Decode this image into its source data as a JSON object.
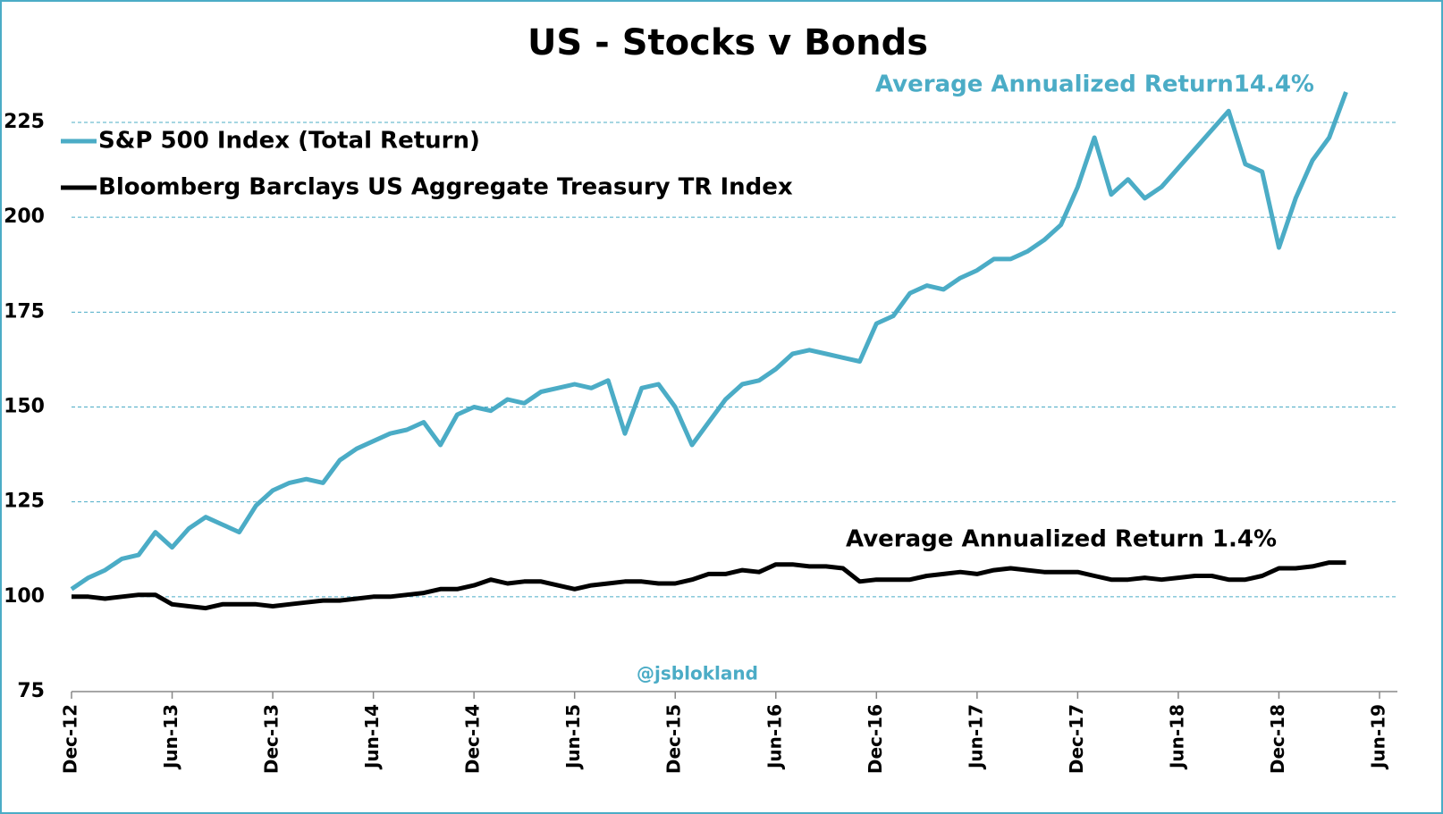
{
  "chart_data": {
    "type": "line",
    "title": "US - Stocks v Bonds",
    "categories": [
      "Dec-12",
      null,
      null,
      null,
      null,
      null,
      "Jun-13",
      null,
      null,
      null,
      null,
      null,
      "Dec-13",
      null,
      null,
      null,
      null,
      null,
      "Jun-14",
      null,
      null,
      null,
      null,
      null,
      "Dec-14",
      null,
      null,
      null,
      null,
      null,
      "Jun-15",
      null,
      null,
      null,
      null,
      null,
      "Dec-15",
      null,
      null,
      null,
      null,
      null,
      "Jun-16",
      null,
      null,
      null,
      null,
      null,
      "Dec-16",
      null,
      null,
      null,
      null,
      null,
      "Jun-17",
      null,
      null,
      null,
      null,
      null,
      "Dec-17",
      null,
      null,
      null,
      null,
      null,
      "Jun-18",
      null,
      null,
      null,
      null,
      null,
      "Dec-18",
      null,
      null,
      null,
      null,
      null,
      "Jun-19"
    ],
    "series": [
      {
        "name": "S&P 500 Index (Total Return)",
        "color": "#4bacc6",
        "values": [
          102,
          105,
          107,
          110,
          111,
          117,
          113,
          118,
          121,
          119,
          117,
          124,
          128,
          130,
          131,
          130,
          136,
          139,
          141,
          143,
          144,
          146,
          140,
          148,
          150,
          149,
          152,
          151,
          154,
          155,
          156,
          155,
          157,
          143,
          155,
          156,
          150,
          140,
          146,
          152,
          156,
          157,
          160,
          164,
          165,
          164,
          163,
          162,
          172,
          174,
          180,
          182,
          181,
          184,
          186,
          189,
          189,
          191,
          194,
          198,
          208,
          221,
          206,
          210,
          205,
          208,
          213,
          218,
          223,
          228,
          214,
          212,
          192,
          205,
          215,
          221,
          233,
          null,
          null
        ]
      },
      {
        "name": "Bloomberg Barclays US Aggregate Treasury TR Index",
        "color": "#000000",
        "values": [
          100,
          100,
          99.5,
          100,
          100.5,
          100.5,
          98,
          97.5,
          97,
          98,
          98,
          98,
          97.5,
          98,
          98.5,
          99,
          99,
          99.5,
          100,
          100,
          100.5,
          101,
          102,
          102,
          103,
          104.5,
          103.5,
          104,
          104,
          103,
          102,
          103,
          103.5,
          104,
          104,
          103.5,
          103.5,
          104.5,
          106,
          106,
          107,
          106.5,
          108.5,
          108.5,
          108,
          108,
          107.5,
          104,
          104.5,
          104.5,
          104.5,
          105.5,
          106,
          106.5,
          106,
          107,
          107.5,
          107,
          106.5,
          106.5,
          106.5,
          105.5,
          104.5,
          104.5,
          105,
          104.5,
          105,
          105.5,
          105.5,
          104.5,
          104.5,
          105.5,
          107.5,
          107.5,
          108,
          109,
          109,
          null,
          null
        ]
      }
    ],
    "annotations": [
      "Average Annualized Return14.4%",
      "Average Annualized Return 1.4%",
      "@jsblokland"
    ],
    "ylim": [
      75,
      240
    ],
    "yticks": [
      75,
      100,
      125,
      150,
      175,
      200,
      225
    ],
    "grid": true
  }
}
